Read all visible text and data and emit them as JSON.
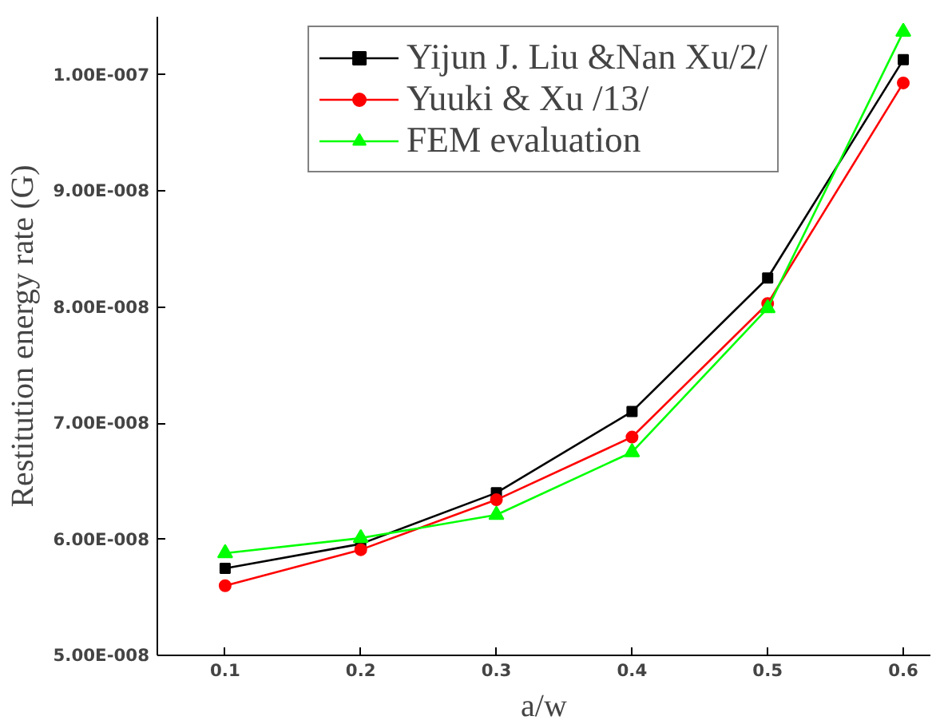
{
  "chart_data": {
    "type": "line",
    "xlabel": "a/w",
    "ylabel": "Restitution energy rate (G)",
    "x": [
      0.1,
      0.2,
      0.3,
      0.4,
      0.5,
      0.6
    ],
    "series": [
      {
        "name": "Yijun J. Liu &Nan Xu/2/",
        "color": "#000000",
        "marker": "square",
        "values": [
          5.75e-08,
          5.96e-08,
          6.4e-08,
          7.1e-08,
          8.25e-08,
          1.013e-07
        ]
      },
      {
        "name": "Yuuki & Xu /13/",
        "color": "#ff0000",
        "marker": "circle",
        "values": [
          5.6e-08,
          5.91e-08,
          6.34e-08,
          6.88e-08,
          8.03e-08,
          9.93e-08
        ]
      },
      {
        "name": "FEM evaluation",
        "color": "#00ff00",
        "marker": "triangle",
        "values": [
          5.88e-08,
          6.01e-08,
          6.21e-08,
          6.75e-08,
          7.99e-08,
          1.037e-07
        ]
      }
    ],
    "xlim": [
      0.05,
      0.62
    ],
    "ylim": [
      5e-08,
      1.05e-07
    ],
    "xticks": [
      0.1,
      0.2,
      0.3,
      0.4,
      0.5,
      0.6
    ],
    "yticks": [
      {
        "value": 5e-08,
        "label": "5.00E-008"
      },
      {
        "value": 6e-08,
        "label": "6.00E-008"
      },
      {
        "value": 7e-08,
        "label": "7.00E-008"
      },
      {
        "value": 8e-08,
        "label": "8.00E-008"
      },
      {
        "value": 9e-08,
        "label": "9.00E-008"
      },
      {
        "value": 1e-07,
        "label": "1.00E-007"
      }
    ],
    "legend": "top",
    "grid": false,
    "line_style": "solid"
  }
}
